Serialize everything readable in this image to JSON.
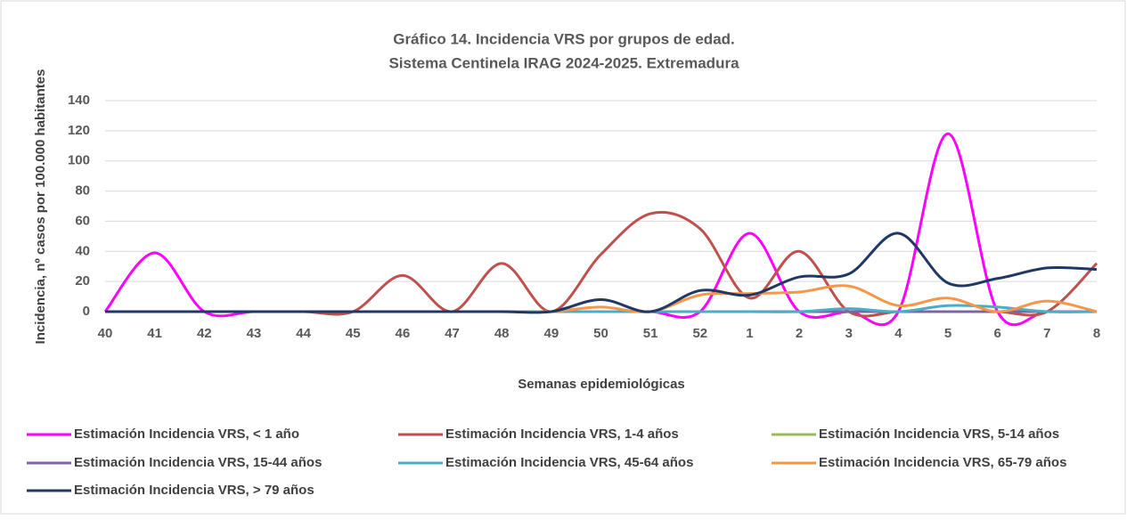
{
  "chart_data": {
    "type": "line",
    "title": [
      "Gráfico 14. Incidencia VRS por grupos de edad.",
      "Sistema Centinela IRAG 2024-2025. Extremadura"
    ],
    "x_label": "Semanas epidemiológicas",
    "y_label": "Incidencia, nº casos por 100.000 habitantes",
    "categories": [
      "40",
      "41",
      "42",
      "43",
      "44",
      "45",
      "46",
      "47",
      "48",
      "49",
      "50",
      "51",
      "52",
      "1",
      "2",
      "3",
      "4",
      "5",
      "6",
      "7",
      "8"
    ],
    "ylim": [
      0,
      140
    ],
    "yticks": [
      0,
      20,
      40,
      60,
      80,
      100,
      120,
      140
    ],
    "grid": true,
    "smooth": true,
    "legend": "bottom",
    "series": [
      {
        "name": "Estimación Incidencia VRS, < 1 año",
        "color": "#ff00ff",
        "values": [
          0,
          39,
          0,
          0,
          0,
          0,
          0,
          0,
          0,
          0,
          0,
          0,
          0,
          52,
          0,
          0,
          0,
          118,
          0,
          0,
          0
        ]
      },
      {
        "name": "Estimación Incidencia VRS, 1-4 años",
        "color": "#c0504d",
        "values": [
          0,
          0,
          0,
          0,
          0,
          0,
          24,
          0,
          32,
          0,
          38,
          65,
          55,
          9,
          40,
          0,
          0,
          0,
          0,
          0,
          32
        ]
      },
      {
        "name": "Estimación Incidencia VRS, 5-14 años",
        "color": "#9bbb59",
        "values": [
          0,
          0,
          0,
          0,
          0,
          0,
          0,
          0,
          0,
          0,
          0,
          0,
          0,
          0,
          0,
          0,
          0,
          0,
          0,
          0,
          0
        ]
      },
      {
        "name": "Estimación Incidencia VRS, 15-44 años",
        "color": "#8064a2",
        "values": [
          0,
          0,
          0,
          0,
          0,
          0,
          0,
          0,
          0,
          0,
          0,
          0,
          0,
          0,
          0,
          0,
          0,
          0,
          0,
          0,
          0
        ]
      },
      {
        "name": "Estimación Incidencia VRS, 45-64 años",
        "color": "#4bacc6",
        "values": [
          0,
          0,
          0,
          0,
          0,
          0,
          0,
          0,
          0,
          0,
          0,
          0,
          0,
          0,
          0,
          2,
          0,
          4,
          3,
          0,
          0
        ]
      },
      {
        "name": "Estimación Incidencia VRS, 65-79 años",
        "color": "#f79646",
        "values": [
          0,
          0,
          0,
          0,
          0,
          0,
          0,
          0,
          0,
          0,
          3,
          0,
          11,
          12,
          13,
          17,
          4,
          9,
          0,
          7,
          0
        ]
      },
      {
        "name": "Estimación Incidencia VRS, > 79 años",
        "color": "#1f3864",
        "values": [
          0,
          0,
          0,
          0,
          0,
          0,
          0,
          0,
          0,
          0,
          8,
          0,
          14,
          11,
          23,
          25,
          52,
          19,
          22,
          29,
          28
        ]
      }
    ]
  }
}
